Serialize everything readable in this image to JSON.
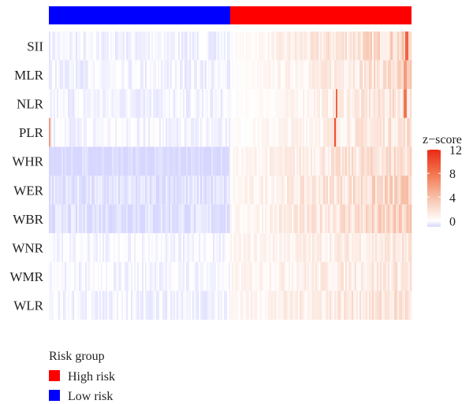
{
  "chart_data": {
    "type": "heatmap",
    "rows": [
      "SII",
      "MLR",
      "NLR",
      "PLR",
      "WHR",
      "WER",
      "WBR",
      "WNR",
      "WMR",
      "WLR"
    ],
    "column_groups": [
      {
        "name": "Low risk",
        "color": "#0000FF",
        "fraction": 0.5
      },
      {
        "name": "High risk",
        "color": "#FF0000",
        "fraction": 0.5
      }
    ],
    "n_columns": 230,
    "row_profiles": [
      {
        "row": "SII",
        "low_mean": -0.3,
        "high_start": 0.4,
        "high_end": 3.5,
        "spikes": [
          [
            0.99,
            9
          ]
        ]
      },
      {
        "row": "MLR",
        "low_mean": -0.3,
        "high_start": 0.3,
        "high_end": 3.0,
        "spikes": [
          [
            0.985,
            6
          ]
        ]
      },
      {
        "row": "NLR",
        "low_mean": -0.3,
        "high_start": 0.3,
        "high_end": 2.5,
        "spikes": [
          [
            0.795,
            9
          ],
          [
            0.985,
            8
          ]
        ]
      },
      {
        "row": "PLR",
        "low_mean": -0.2,
        "high_start": 0.5,
        "high_end": 2.5,
        "spikes": [
          [
            0.0,
            6
          ],
          [
            0.79,
            10
          ]
        ]
      },
      {
        "row": "WHR",
        "low_mean": -1.0,
        "high_start": 0.8,
        "high_end": 3.0,
        "spikes": []
      },
      {
        "row": "WER",
        "low_mean": -0.7,
        "high_start": 0.8,
        "high_end": 3.5,
        "spikes": []
      },
      {
        "row": "WBR",
        "low_mean": -0.7,
        "high_start": 0.8,
        "high_end": 3.5,
        "spikes": []
      },
      {
        "row": "WNR",
        "low_mean": -0.2,
        "high_start": 1.0,
        "high_end": 2.0,
        "spikes": []
      },
      {
        "row": "WMR",
        "low_mean": -0.2,
        "high_start": 1.0,
        "high_end": 2.2,
        "spikes": []
      },
      {
        "row": "WLR",
        "low_mean": -0.3,
        "high_start": 1.0,
        "high_end": 2.5,
        "spikes": []
      }
    ],
    "color_scale": {
      "title": "z−score",
      "min": -1,
      "max": 12,
      "stops": [
        {
          "value": -1,
          "color": "#d6d6ff"
        },
        {
          "value": 0,
          "color": "#ffffff"
        },
        {
          "value": 4,
          "color": "#f7c0a8"
        },
        {
          "value": 8,
          "color": "#f2754f"
        },
        {
          "value": 12,
          "color": "#ea2a15"
        }
      ],
      "ticks": [
        0,
        4,
        8,
        12
      ]
    },
    "legend": {
      "title": "Risk group",
      "items": [
        {
          "label": "High risk",
          "color": "#FF0000"
        },
        {
          "label": "Low risk",
          "color": "#0000FF"
        }
      ]
    }
  }
}
